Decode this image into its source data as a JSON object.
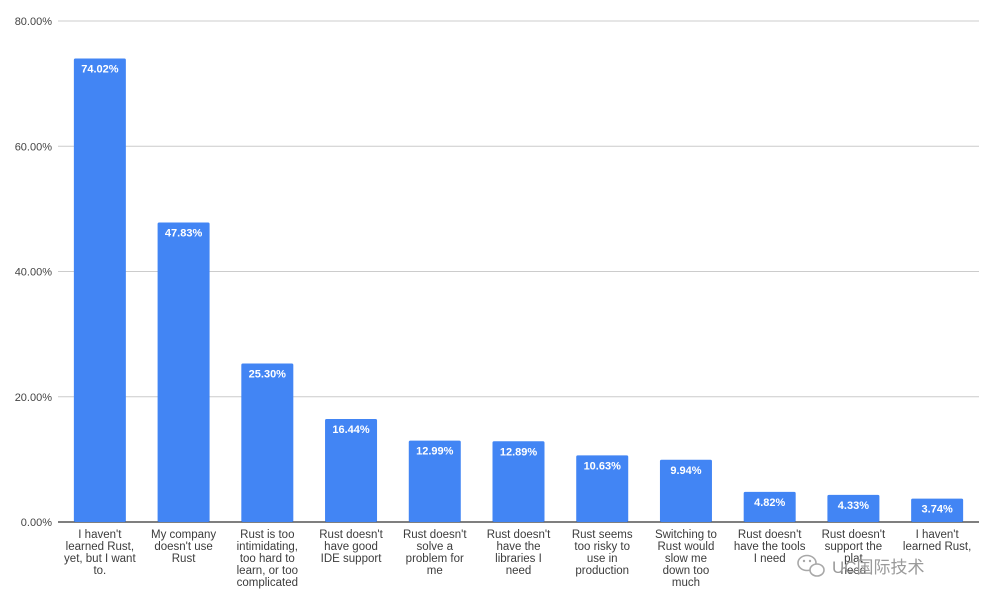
{
  "chart_data": {
    "type": "bar",
    "title": "",
    "xlabel": "",
    "ylabel": "",
    "ylim": [
      0,
      80
    ],
    "y_ticks": [
      "0.00%",
      "20.00%",
      "40.00%",
      "60.00%",
      "80.00%"
    ],
    "y_tick_values": [
      0,
      20,
      40,
      60,
      80
    ],
    "grid": true,
    "legend": "none",
    "bar_color": "#4285f4",
    "categories": [
      [
        "I haven't",
        "learned Rust,",
        "yet, but I want",
        "to."
      ],
      [
        "My company",
        "doesn't use",
        "Rust"
      ],
      [
        "Rust is too",
        "intimidating,",
        "too hard to",
        "learn, or too",
        "complicated"
      ],
      [
        "Rust doesn't",
        "have good",
        "IDE support"
      ],
      [
        "Rust doesn't",
        "solve a",
        "problem for",
        "me"
      ],
      [
        "Rust doesn't",
        "have the",
        "libraries I",
        "need"
      ],
      [
        "Rust seems",
        "too risky to",
        "use in",
        "production"
      ],
      [
        "Switching to",
        "Rust would",
        "slow me",
        "down too",
        "much"
      ],
      [
        "Rust doesn't",
        "have the tools",
        "I need"
      ],
      [
        "Rust doesn't",
        "support the",
        "plat",
        "need"
      ],
      [
        "I haven't",
        "learned Rust,"
      ]
    ],
    "values": [
      74.02,
      47.83,
      25.3,
      16.44,
      12.99,
      12.89,
      10.63,
      9.94,
      4.82,
      4.33,
      3.74
    ],
    "data_labels": [
      "74.02%",
      "47.83%",
      "25.30%",
      "16.44%",
      "12.99%",
      "12.89%",
      "10.63%",
      "9.94%",
      "4.82%",
      "4.33%",
      "3.74%"
    ]
  },
  "watermark": {
    "text": "UC国际技术",
    "icon": "wechat-bubble-icon"
  }
}
